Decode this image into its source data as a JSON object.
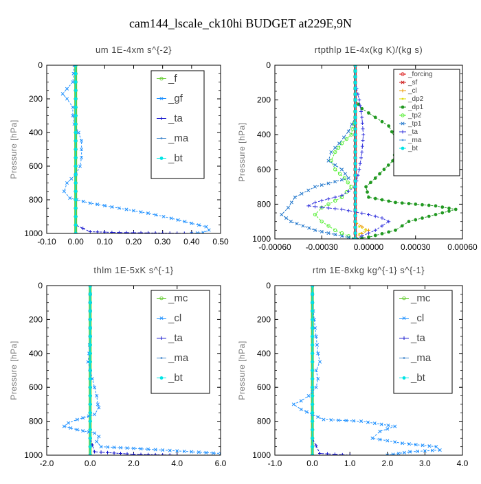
{
  "title": "cam144_lscale_ck10hi  BUDGET at229E,9N",
  "chart_data": [
    {
      "type": "line",
      "title": "um   1E-4xm s^{-2}",
      "ylabel": "Pressure [hPa]",
      "xlabel": "",
      "xlim": [
        -0.1,
        0.5
      ],
      "ylim": [
        1000,
        0
      ],
      "xticks": [
        "-0.10",
        "0.00",
        "0.10",
        "0.20",
        "0.30",
        "0.40",
        "0.50"
      ],
      "yticks": [
        "0",
        "200",
        "400",
        "600",
        "800",
        "1000"
      ],
      "legend_position": "top-right",
      "series": [
        {
          "name": "_f",
          "color": "#66cc33",
          "x": [
            0,
            0,
            0,
            0,
            0,
            0,
            0,
            0,
            0,
            0,
            0
          ],
          "y": [
            0,
            100,
            200,
            300,
            400,
            500,
            600,
            700,
            800,
            900,
            1000
          ]
        },
        {
          "name": "_gf",
          "color": "#1e90ff",
          "x": [
            -0.005,
            -0.01,
            -0.03,
            -0.045,
            -0.03,
            -0.01,
            -0.01,
            -0.005,
            0.01,
            0.02,
            0.02,
            0.02,
            0.015,
            0,
            -0.03,
            -0.04,
            -0.02,
            0.05,
            0.15,
            0.25,
            0.33,
            0.4,
            0.45,
            0.46,
            0.44,
            0.4
          ],
          "y": [
            0,
            100,
            140,
            170,
            200,
            250,
            300,
            350,
            400,
            450,
            500,
            550,
            600,
            650,
            700,
            750,
            790,
            820,
            850,
            880,
            910,
            940,
            960,
            980,
            995,
            1000
          ]
        },
        {
          "name": "_ta",
          "color": "#1010cc",
          "x": [
            0,
            0,
            0,
            0,
            0,
            0,
            0,
            0,
            0,
            0,
            0,
            0.05,
            0.15,
            0.3,
            0.4
          ],
          "y": [
            0,
            100,
            200,
            300,
            400,
            500,
            600,
            700,
            800,
            900,
            950,
            990,
            995,
            998,
            1000
          ]
        },
        {
          "name": "_ma",
          "color": "#4488cc",
          "x": [
            0,
            0,
            0,
            0,
            0,
            0,
            0,
            0,
            0,
            0,
            0
          ],
          "y": [
            0,
            100,
            200,
            300,
            400,
            500,
            600,
            700,
            800,
            900,
            1000
          ]
        },
        {
          "name": "_bt",
          "color": "#00e5e5",
          "x": [
            0,
            0,
            0,
            0,
            0,
            0,
            0,
            0,
            0,
            0,
            0
          ],
          "y": [
            0,
            100,
            200,
            300,
            400,
            500,
            600,
            700,
            800,
            900,
            1000
          ]
        }
      ]
    },
    {
      "type": "line",
      "title": "rtpthlp   1E-4x(kg K)/(kg s)",
      "ylabel": "Pressure [hPa]",
      "xlabel": "",
      "xlim": [
        -0.0006,
        0.0008
      ],
      "ylim": [
        1000,
        0
      ],
      "xticks": [
        "-0.00060",
        "-0.00030",
        "0.00000",
        "0.00030",
        "0.00060"
      ],
      "yticks": [
        "0",
        "200",
        "400",
        "600",
        "800",
        "1000"
      ],
      "legend_position": "top-right",
      "series": [
        {
          "name": "_forcing",
          "color": "#dd2222",
          "x": [
            0,
            0,
            0,
            0,
            0,
            0,
            0,
            0,
            0,
            0,
            0
          ],
          "y": [
            0,
            100,
            200,
            300,
            400,
            500,
            600,
            700,
            800,
            900,
            1000
          ]
        },
        {
          "name": "_sf",
          "color": "#cc1111",
          "x": [
            0,
            0,
            0,
            0,
            0,
            0,
            0,
            0,
            0,
            0,
            0
          ],
          "y": [
            0,
            100,
            200,
            300,
            400,
            500,
            600,
            700,
            800,
            900,
            1000
          ]
        },
        {
          "name": "_cl",
          "color": "#ee9900",
          "x": [
            0,
            0,
            0,
            0,
            0,
            0,
            0,
            0,
            0,
            0,
            5e-05,
            0.0001,
            5e-05,
            0
          ],
          "y": [
            0,
            100,
            200,
            300,
            400,
            500,
            600,
            700,
            800,
            900,
            930,
            950,
            970,
            1000
          ]
        },
        {
          "name": "_dp2",
          "color": "#dddd00",
          "x": [
            0,
            0,
            0,
            0,
            0,
            0,
            0,
            0,
            0,
            0,
            3e-05,
            8e-05,
            3e-05,
            0
          ],
          "y": [
            0,
            100,
            200,
            300,
            400,
            500,
            600,
            700,
            800,
            900,
            930,
            950,
            970,
            1000
          ]
        },
        {
          "name": "_dp1",
          "color": "#229922",
          "x": [
            0,
            0,
            0,
            5e-05,
            0.00015,
            0.00025,
            0.00032,
            0.00028,
            0.00015,
            8e-05,
            0.0001,
            0.0003,
            0.0006,
            0.00075,
            0.0006,
            0.0004,
            0.0003,
            0.0001,
            0
          ],
          "y": [
            0,
            100,
            200,
            250,
            300,
            350,
            450,
            550,
            650,
            700,
            760,
            790,
            810,
            830,
            860,
            900,
            950,
            990,
            1000
          ]
        },
        {
          "name": "_tp2",
          "color": "#55ee33",
          "x": [
            0,
            0,
            0,
            0,
            -3e-05,
            -0.0001,
            -0.00015,
            -0.00018,
            -0.00015,
            -8e-05,
            -3e-05,
            -0.0001,
            -0.00025,
            -0.0003,
            -0.00025,
            -0.00015,
            0
          ],
          "y": [
            0,
            100,
            200,
            300,
            400,
            450,
            500,
            550,
            600,
            650,
            700,
            760,
            820,
            860,
            900,
            950,
            1000
          ]
        },
        {
          "name": "_tp1",
          "color": "#2277cc",
          "x": [
            0,
            0,
            0,
            0,
            -5e-05,
            -0.00012,
            -0.00018,
            -0.0002,
            -0.0001,
            -5e-05,
            -0.0003,
            -0.00045,
            -0.0005,
            -0.00055,
            -0.00048,
            -0.0003,
            0
          ],
          "y": [
            0,
            100,
            200,
            300,
            380,
            450,
            500,
            550,
            600,
            650,
            700,
            760,
            820,
            860,
            900,
            950,
            1000
          ]
        },
        {
          "name": "_ta",
          "color": "#3333dd",
          "x": [
            0,
            0,
            3e-05,
            5e-05,
            6e-05,
            5e-05,
            3e-05,
            0,
            -0.0001,
            -0.0003,
            -0.00035,
            -0.0001,
            0.0001,
            0.0002,
            0.00025,
            0.00015,
            0
          ],
          "y": [
            0,
            100,
            200,
            300,
            400,
            500,
            600,
            700,
            750,
            790,
            810,
            830,
            860,
            880,
            900,
            950,
            1000
          ]
        },
        {
          "name": "_ma",
          "color": "#5599dd",
          "x": [
            0,
            0,
            0,
            0,
            0,
            0,
            0,
            0,
            0,
            0,
            0
          ],
          "y": [
            0,
            100,
            200,
            300,
            400,
            500,
            600,
            700,
            800,
            900,
            1000
          ]
        },
        {
          "name": "_bt",
          "color": "#00e5e5",
          "x": [
            0,
            0,
            0,
            0,
            0,
            0,
            0,
            0,
            0,
            0,
            0
          ],
          "y": [
            0,
            100,
            200,
            300,
            400,
            500,
            600,
            700,
            800,
            900,
            1000
          ]
        }
      ]
    },
    {
      "type": "line",
      "title": "thlm   1E-5xK s^{-1}",
      "ylabel": "Pressure [hPa]",
      "xlabel": "",
      "xlim": [
        -2.0,
        6.0
      ],
      "ylim": [
        1000,
        0
      ],
      "xticks": [
        "-2.0",
        "0.0",
        "2.0",
        "4.0",
        "6.0"
      ],
      "yticks": [
        "0",
        "200",
        "400",
        "600",
        "800",
        "1000"
      ],
      "legend_position": "top-right",
      "series": [
        {
          "name": "_mc",
          "color": "#66cc33",
          "x": [
            0,
            0,
            0,
            0,
            0,
            0,
            0,
            0,
            0,
            0,
            0
          ],
          "y": [
            0,
            100,
            200,
            300,
            400,
            500,
            600,
            700,
            800,
            900,
            1000
          ]
        },
        {
          "name": "_cl",
          "color": "#1e90ff",
          "x": [
            0,
            0,
            0,
            0,
            -0.05,
            -0.1,
            0,
            0.1,
            0.2,
            0.3,
            0.35,
            0.4,
            0.2,
            -0.6,
            -1.0,
            -1.2,
            -0.6,
            0.2,
            0.4,
            0.3,
            0.5,
            2.0,
            4.0,
            6.0
          ],
          "y": [
            0,
            100,
            200,
            300,
            400,
            450,
            500,
            550,
            600,
            650,
            700,
            720,
            760,
            790,
            810,
            830,
            850,
            870,
            890,
            920,
            950,
            960,
            975,
            990
          ]
        },
        {
          "name": "_ta",
          "color": "#1010cc",
          "x": [
            0,
            0,
            0,
            0,
            0,
            0,
            0,
            0,
            0,
            0,
            0.2,
            2.0,
            4.0
          ],
          "y": [
            0,
            100,
            200,
            300,
            400,
            500,
            600,
            700,
            800,
            900,
            980,
            995,
            1000
          ]
        },
        {
          "name": "_ma",
          "color": "#4488cc",
          "x": [
            0,
            0,
            0,
            0,
            0,
            0,
            0,
            0,
            0,
            0,
            0
          ],
          "y": [
            0,
            100,
            200,
            300,
            400,
            500,
            600,
            700,
            800,
            900,
            1000
          ]
        },
        {
          "name": "_bt",
          "color": "#00e5e5",
          "x": [
            0,
            0,
            0,
            0,
            0,
            0,
            0,
            0,
            0,
            0,
            0
          ],
          "y": [
            0,
            100,
            200,
            300,
            400,
            500,
            600,
            700,
            800,
            900,
            1000
          ]
        }
      ]
    },
    {
      "type": "line",
      "title": "rtm   1E-8xkg kg^{-1} s^{-1}",
      "ylabel": "Pressure [hPa]",
      "xlabel": "",
      "xlim": [
        -1.0,
        4.0
      ],
      "ylim": [
        1000,
        0
      ],
      "xticks": [
        "-1.0",
        "0.0",
        "1.0",
        "2.0",
        "3.0",
        "4.0"
      ],
      "yticks": [
        "0",
        "200",
        "400",
        "600",
        "800",
        "1000"
      ],
      "legend_position": "top-right",
      "series": [
        {
          "name": "_mc",
          "color": "#66cc33",
          "x": [
            0,
            0,
            0,
            0,
            0,
            0,
            0,
            0,
            0,
            0,
            0
          ],
          "y": [
            0,
            100,
            200,
            300,
            400,
            500,
            600,
            700,
            800,
            900,
            1000
          ]
        },
        {
          "name": "_cl",
          "color": "#1e90ff",
          "x": [
            0,
            0,
            0.05,
            0.1,
            0.15,
            0.2,
            0.1,
            0.15,
            0.1,
            -0.1,
            -0.3,
            -0.5,
            -0.3,
            0.3,
            1.3,
            2.2,
            1.8,
            1.6,
            2.4,
            3.3,
            3.4,
            2.6,
            2.3,
            2.0
          ],
          "y": [
            0,
            100,
            200,
            300,
            400,
            450,
            500,
            550,
            600,
            650,
            680,
            700,
            730,
            790,
            800,
            830,
            860,
            900,
            930,
            950,
            970,
            980,
            990,
            1000
          ]
        },
        {
          "name": "_ta",
          "color": "#1010cc",
          "x": [
            0,
            0,
            0,
            0,
            0,
            0,
            0,
            0,
            0,
            0,
            0.2,
            1.0
          ],
          "y": [
            0,
            100,
            200,
            300,
            400,
            500,
            600,
            700,
            800,
            900,
            990,
            1000
          ]
        },
        {
          "name": "_ma",
          "color": "#4488cc",
          "x": [
            0,
            0,
            0,
            0,
            0,
            0,
            0,
            0,
            0,
            0,
            0
          ],
          "y": [
            0,
            100,
            200,
            300,
            400,
            500,
            600,
            700,
            800,
            900,
            1000
          ]
        },
        {
          "name": "_bt",
          "color": "#00e5e5",
          "x": [
            0,
            0,
            0,
            0,
            0,
            0,
            0,
            0,
            0,
            0,
            0
          ],
          "y": [
            0,
            100,
            200,
            300,
            400,
            500,
            600,
            700,
            800,
            900,
            1000
          ]
        }
      ]
    }
  ]
}
